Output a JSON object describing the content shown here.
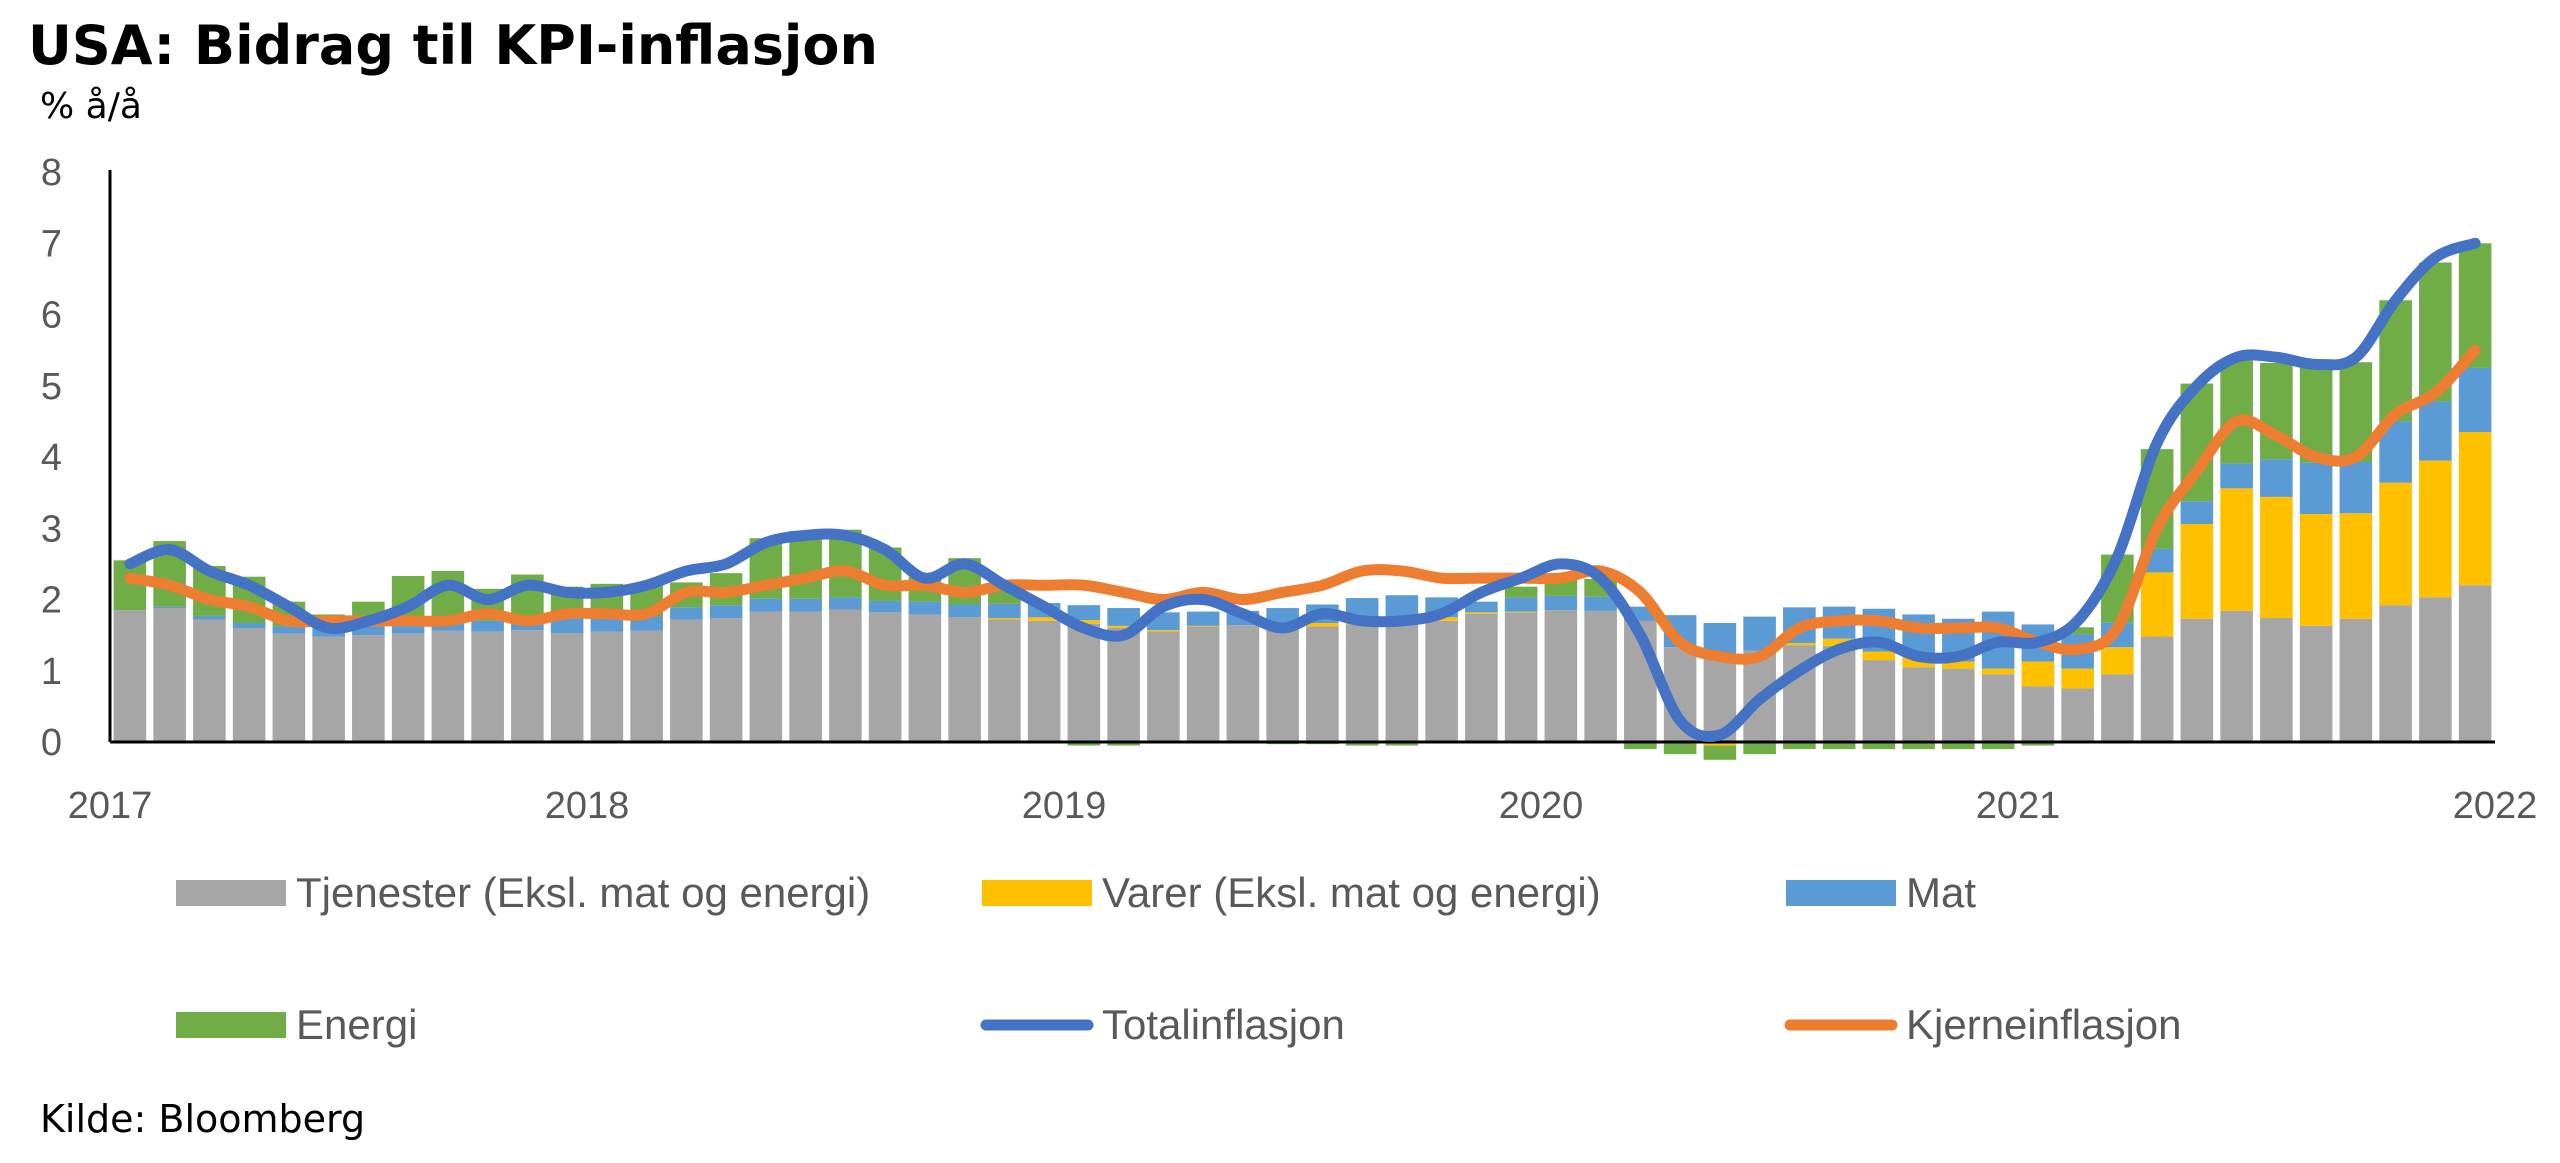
{
  "title": "USA: Bidrag til KPI-inflasjon",
  "source": "Kilde: Bloomberg",
  "colors": {
    "services": "#a6a6a6",
    "goods": "#ffc000",
    "food": "#5b9bd5",
    "energy": "#70ad47",
    "total": "#4472c4",
    "core": "#ed7d31",
    "axis": "#000000",
    "tick_text": "#595959"
  },
  "legend": [
    {
      "key": "services",
      "label": "Tjenester (Eksl. mat og energi)",
      "kind": "bar"
    },
    {
      "key": "goods",
      "label": "Varer (Eksl. mat og energi)",
      "kind": "bar"
    },
    {
      "key": "food",
      "label": "Mat",
      "kind": "bar"
    },
    {
      "key": "energy",
      "label": "Energi",
      "kind": "bar"
    },
    {
      "key": "total",
      "label": "Totalinflasjon",
      "kind": "line"
    },
    {
      "key": "core",
      "label": "Kjerneinflasjon",
      "kind": "line"
    }
  ],
  "chart_data": {
    "type": "bar",
    "stacked": true,
    "ylabel": "% å/å",
    "ylim": [
      0,
      8
    ],
    "yticks": [
      "0",
      "1",
      "2",
      "3",
      "4",
      "5",
      "6",
      "7",
      "8"
    ],
    "xticks": [
      "2017",
      "2018",
      "2019",
      "2020",
      "2021",
      "2022"
    ],
    "x_start": "2017-01",
    "x_end": "2022-01",
    "x": [
      "2017-01",
      "2017-02",
      "2017-03",
      "2017-04",
      "2017-05",
      "2017-06",
      "2017-07",
      "2017-08",
      "2017-09",
      "2017-10",
      "2017-11",
      "2017-12",
      "2018-01",
      "2018-02",
      "2018-03",
      "2018-04",
      "2018-05",
      "2018-06",
      "2018-07",
      "2018-08",
      "2018-09",
      "2018-10",
      "2018-11",
      "2018-12",
      "2019-01",
      "2019-02",
      "2019-03",
      "2019-04",
      "2019-05",
      "2019-06",
      "2019-07",
      "2019-08",
      "2019-09",
      "2019-10",
      "2019-11",
      "2019-12",
      "2020-01",
      "2020-02",
      "2020-03",
      "2020-04",
      "2020-05",
      "2020-06",
      "2020-07",
      "2020-08",
      "2020-09",
      "2020-10",
      "2020-11",
      "2020-12",
      "2021-01",
      "2021-02",
      "2021-03",
      "2021-04",
      "2021-05",
      "2021-06",
      "2021-07",
      "2021-08",
      "2021-09",
      "2021-10",
      "2021-11",
      "2021-12"
    ],
    "series": [
      {
        "name": "Tjenester (Eksl. mat og energi)",
        "key": "services",
        "kind": "bar",
        "values": [
          1.85,
          1.88,
          1.72,
          1.6,
          1.52,
          1.48,
          1.5,
          1.52,
          1.56,
          1.55,
          1.57,
          1.53,
          1.55,
          1.56,
          1.72,
          1.74,
          1.83,
          1.83,
          1.86,
          1.82,
          1.79,
          1.75,
          1.72,
          1.7,
          1.66,
          1.6,
          1.55,
          1.62,
          1.64,
          1.6,
          1.62,
          1.65,
          1.68,
          1.7,
          1.8,
          1.82,
          1.85,
          1.84,
          1.7,
          1.33,
          1.2,
          1.28,
          1.36,
          1.35,
          1.15,
          1.05,
          1.03,
          0.95,
          0.78,
          0.75,
          0.95,
          1.48,
          1.73,
          1.84,
          1.74,
          1.63,
          1.73,
          1.92,
          2.03,
          2.2
        ]
      },
      {
        "name": "Varer (Eksl. mat og energi)",
        "key": "goods",
        "kind": "bar",
        "values": [
          -0.02,
          -0.02,
          -0.02,
          -0.02,
          -0.02,
          -0.02,
          -0.02,
          -0.02,
          -0.02,
          -0.02,
          -0.02,
          -0.02,
          -0.02,
          -0.02,
          -0.02,
          -0.02,
          -0.02,
          -0.02,
          -0.02,
          -0.02,
          -0.02,
          -0.02,
          0.02,
          0.05,
          0.05,
          0.03,
          0.02,
          0.01,
          0.0,
          0.03,
          0.05,
          0.07,
          0.08,
          0.05,
          0.02,
          0.01,
          -0.02,
          0.0,
          0.0,
          -0.02,
          -0.05,
          -0.02,
          0.03,
          0.1,
          0.12,
          0.14,
          0.1,
          0.08,
          0.35,
          0.28,
          0.38,
          0.9,
          1.33,
          1.72,
          1.7,
          1.57,
          1.48,
          1.72,
          1.92,
          2.15
        ]
      },
      {
        "name": "Mat",
        "key": "food",
        "kind": "bar",
        "values": [
          0.0,
          0.02,
          0.05,
          0.07,
          0.1,
          0.11,
          0.12,
          0.13,
          0.14,
          0.15,
          0.18,
          0.2,
          0.22,
          0.2,
          0.17,
          0.18,
          0.18,
          0.18,
          0.17,
          0.16,
          0.18,
          0.18,
          0.2,
          0.2,
          0.21,
          0.25,
          0.25,
          0.2,
          0.2,
          0.25,
          0.26,
          0.3,
          0.3,
          0.28,
          0.15,
          0.2,
          0.2,
          0.2,
          0.2,
          0.45,
          0.47,
          0.48,
          0.5,
          0.45,
          0.6,
          0.6,
          0.6,
          0.8,
          0.52,
          0.48,
          0.35,
          0.33,
          0.32,
          0.35,
          0.53,
          0.72,
          0.72,
          0.86,
          0.83,
          0.9
        ]
      },
      {
        "name": "Energi",
        "key": "energy",
        "kind": "bar",
        "values": [
          0.7,
          0.92,
          0.7,
          0.65,
          0.35,
          0.2,
          0.35,
          0.68,
          0.7,
          0.45,
          0.6,
          0.45,
          0.45,
          0.45,
          0.35,
          0.45,
          0.85,
          0.95,
          0.95,
          0.75,
          0.35,
          0.65,
          0.3,
          0.0,
          -0.05,
          -0.05,
          0.0,
          0.0,
          0.0,
          -0.03,
          -0.03,
          -0.05,
          -0.05,
          0.0,
          0.0,
          0.15,
          0.25,
          0.25,
          -0.1,
          -0.15,
          -0.2,
          -0.15,
          -0.1,
          -0.1,
          -0.1,
          -0.1,
          -0.1,
          -0.1,
          -0.05,
          0.1,
          0.95,
          1.4,
          1.65,
          1.45,
          1.35,
          1.45,
          1.4,
          1.7,
          1.95,
          1.75
        ]
      },
      {
        "name": "Totalinflasjon",
        "key": "total",
        "kind": "line",
        "values": [
          2.5,
          2.7,
          2.4,
          2.2,
          1.9,
          1.6,
          1.7,
          1.9,
          2.2,
          2.0,
          2.2,
          2.1,
          2.1,
          2.2,
          2.4,
          2.5,
          2.8,
          2.9,
          2.9,
          2.7,
          2.3,
          2.5,
          2.2,
          1.9,
          1.6,
          1.5,
          1.9,
          2.0,
          1.8,
          1.6,
          1.8,
          1.7,
          1.7,
          1.8,
          2.1,
          2.3,
          2.5,
          2.3,
          1.5,
          0.3,
          0.1,
          0.6,
          1.0,
          1.3,
          1.4,
          1.2,
          1.2,
          1.4,
          1.4,
          1.7,
          2.6,
          4.2,
          5.0,
          5.4,
          5.4,
          5.3,
          5.4,
          6.2,
          6.8,
          7.0
        ]
      },
      {
        "name": "Kjerneinflasjon",
        "key": "core",
        "kind": "line",
        "values": [
          2.3,
          2.2,
          2.0,
          1.9,
          1.7,
          1.7,
          1.7,
          1.7,
          1.7,
          1.8,
          1.7,
          1.8,
          1.8,
          1.8,
          2.1,
          2.1,
          2.2,
          2.3,
          2.4,
          2.2,
          2.2,
          2.1,
          2.2,
          2.2,
          2.2,
          2.1,
          2.0,
          2.1,
          2.0,
          2.1,
          2.2,
          2.4,
          2.4,
          2.3,
          2.3,
          2.3,
          2.3,
          2.4,
          2.1,
          1.4,
          1.2,
          1.2,
          1.6,
          1.7,
          1.7,
          1.6,
          1.6,
          1.6,
          1.4,
          1.3,
          1.6,
          3.0,
          3.8,
          4.5,
          4.3,
          4.0,
          4.0,
          4.6,
          4.9,
          5.5
        ]
      }
    ]
  }
}
